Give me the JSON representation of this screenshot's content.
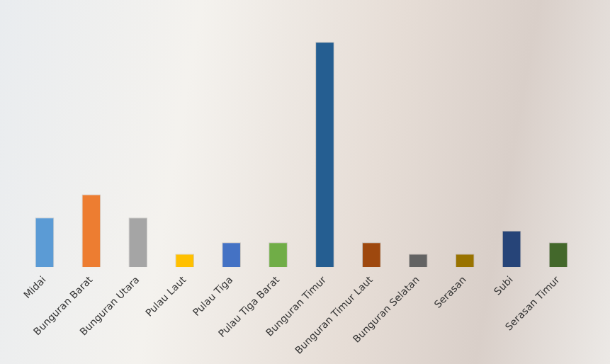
{
  "chart_data": {
    "type": "bar",
    "categories": [
      "Midai",
      "Bunguran Barat",
      "Bunguran Utara",
      "Pulau Laut",
      "Pulau Tiga",
      "Pulau Tiga Barat",
      "Bunguran Timur",
      "Bunguran Timur Laut",
      "Bunguran Selatan",
      "Serasan",
      "Subi",
      "Serasan Timur"
    ],
    "values": [
      60,
      88,
      60,
      16,
      30,
      30,
      272,
      30,
      16,
      16,
      44,
      30
    ],
    "colors": [
      "#5b9bd5",
      "#ed7d31",
      "#a5a5a5",
      "#ffc000",
      "#4472c4",
      "#70ad47",
      "#255e91",
      "#9e480e",
      "#636363",
      "#997300",
      "#264478",
      "#43682b"
    ],
    "ylim": [
      0,
      280
    ],
    "grid": false,
    "tick_labels": "x"
  }
}
